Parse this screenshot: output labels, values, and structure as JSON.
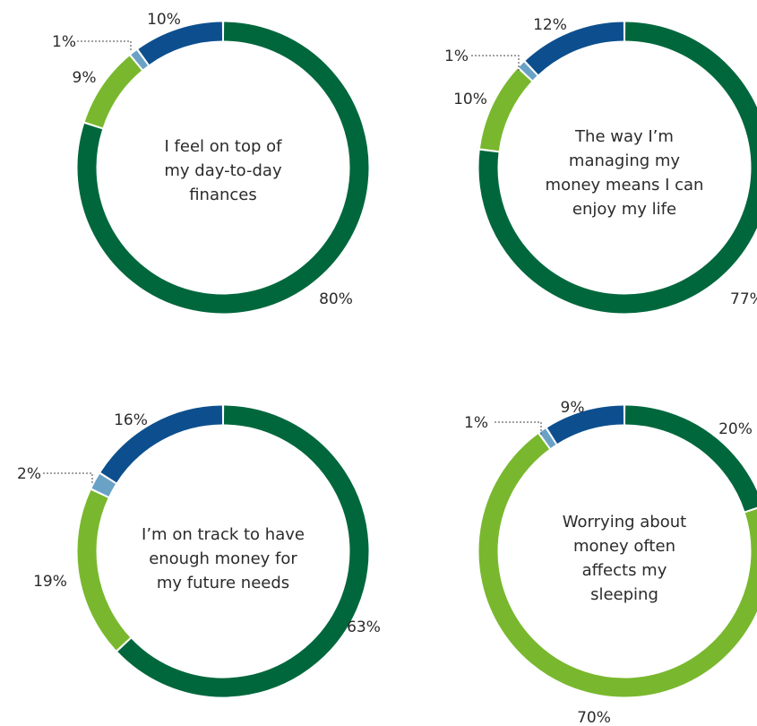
{
  "colors": {
    "dark_green": "#00673d",
    "light_green": "#79b82e",
    "light_blue": "#6aa2c6",
    "dark_blue": "#0d4f8e",
    "leader_line": "#444444"
  },
  "chart_data": [
    {
      "type": "pie",
      "title": "I feel on top of my day-to-day finances",
      "title_lines": [
        "I feel on top of",
        "my day-to-day",
        "finances"
      ],
      "segments": [
        {
          "value": 80,
          "label": "80%",
          "color": "dark_green"
        },
        {
          "value": 9,
          "label": "9%",
          "color": "light_green"
        },
        {
          "value": 1,
          "label": "1%",
          "color": "light_blue"
        },
        {
          "value": 10,
          "label": "10%",
          "color": "dark_blue"
        }
      ]
    },
    {
      "type": "pie",
      "title": "The way I'm managing my money means I can enjoy my life",
      "title_lines": [
        "The way I’m",
        "managing my",
        "money means I can",
        "enjoy my life"
      ],
      "segments": [
        {
          "value": 77,
          "label": "77%",
          "color": "dark_green"
        },
        {
          "value": 10,
          "label": "10%",
          "color": "light_green"
        },
        {
          "value": 1,
          "label": "1%",
          "color": "light_blue"
        },
        {
          "value": 12,
          "label": "12%",
          "color": "dark_blue"
        }
      ]
    },
    {
      "type": "pie",
      "title": "I'm on track to have enough money for my future needs",
      "title_lines": [
        "I’m on track to have",
        "enough money for",
        "my future needs"
      ],
      "segments": [
        {
          "value": 63,
          "label": "63%",
          "color": "dark_green"
        },
        {
          "value": 19,
          "label": "19%",
          "color": "light_green"
        },
        {
          "value": 2,
          "label": "2%",
          "color": "light_blue"
        },
        {
          "value": 16,
          "label": "16%",
          "color": "dark_blue"
        }
      ]
    },
    {
      "type": "pie",
      "title": "Worrying about money often affects my sleeping",
      "title_lines": [
        "Worrying about",
        "money often",
        "affects my",
        "sleeping"
      ],
      "segments": [
        {
          "value": 20,
          "label": "20%",
          "color": "dark_green"
        },
        {
          "value": 70,
          "label": "70%",
          "color": "light_green"
        },
        {
          "value": 1,
          "label": "1%",
          "color": "light_blue"
        },
        {
          "value": 9,
          "label": "9%",
          "color": "dark_blue"
        }
      ]
    }
  ]
}
